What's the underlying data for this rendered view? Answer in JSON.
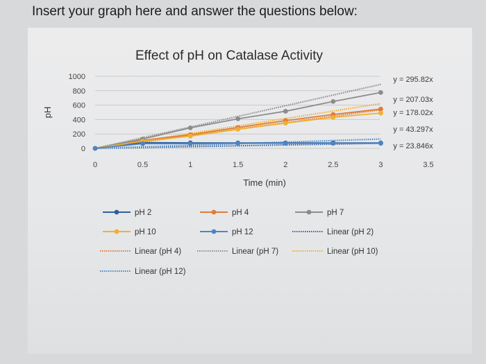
{
  "instruction": "Insert your graph here and answer the questions below:",
  "chart_data": {
    "type": "line",
    "title": "Effect of pH on Catalase Activity",
    "xlabel": "Time (min)",
    "ylabel": "pH",
    "xlim": [
      0,
      3.5
    ],
    "ylim": [
      0,
      1000
    ],
    "x_ticks": [
      "0",
      "0.5",
      "1",
      "1.5",
      "2",
      "2.5",
      "3",
      "3.5"
    ],
    "y_ticks": [
      "0",
      "200",
      "400",
      "600",
      "800",
      "1000"
    ],
    "grid": "horizontal",
    "legend_position": "bottom",
    "x": [
      0,
      0.5,
      1,
      1.5,
      2,
      2.5,
      3
    ],
    "series": [
      {
        "name": "pH 2",
        "color": "#2e5f9b",
        "values": [
          0,
          80,
          77,
          76,
          75,
          75,
          75
        ]
      },
      {
        "name": "pH 4",
        "color": "#e07b39",
        "values": [
          0,
          110,
          190,
          290,
          385,
          470,
          545
        ]
      },
      {
        "name": "pH 7",
        "color": "#8c8c8c",
        "values": [
          0,
          130,
          285,
          410,
          515,
          650,
          775
        ]
      },
      {
        "name": "pH 10",
        "color": "#f0b030",
        "values": [
          0,
          100,
          170,
          265,
          350,
          430,
          490
        ]
      },
      {
        "name": "pH 12",
        "color": "#4a86c6",
        "values": [
          0,
          65,
          65,
          70,
          70,
          70,
          70
        ]
      }
    ],
    "trendlines": [
      {
        "name": "Linear (pH 2)",
        "color": "#2e5f9b",
        "slope": 23.846,
        "equation": "y = 23.846x"
      },
      {
        "name": "Linear (pH 4)",
        "color": "#e07b39",
        "slope": 178.02,
        "equation": "y = 178.02x"
      },
      {
        "name": "Linear (pH 7)",
        "color": "#8c8c8c",
        "slope": 295.82,
        "equation": "y = 295.82x"
      },
      {
        "name": "Linear (pH 10)",
        "color": "#f0b030",
        "slope": 207.03,
        "equation": "y = 207.03x"
      },
      {
        "name": "Linear (pH 12)",
        "color": "#4a86c6",
        "slope": 43.297,
        "equation": "y = 43.297x"
      }
    ],
    "equation_labels": [
      "y = 295.82x",
      "y = 207.03x",
      "y = 178.02x",
      "y = 43.297x",
      "y = 23.846x"
    ]
  }
}
